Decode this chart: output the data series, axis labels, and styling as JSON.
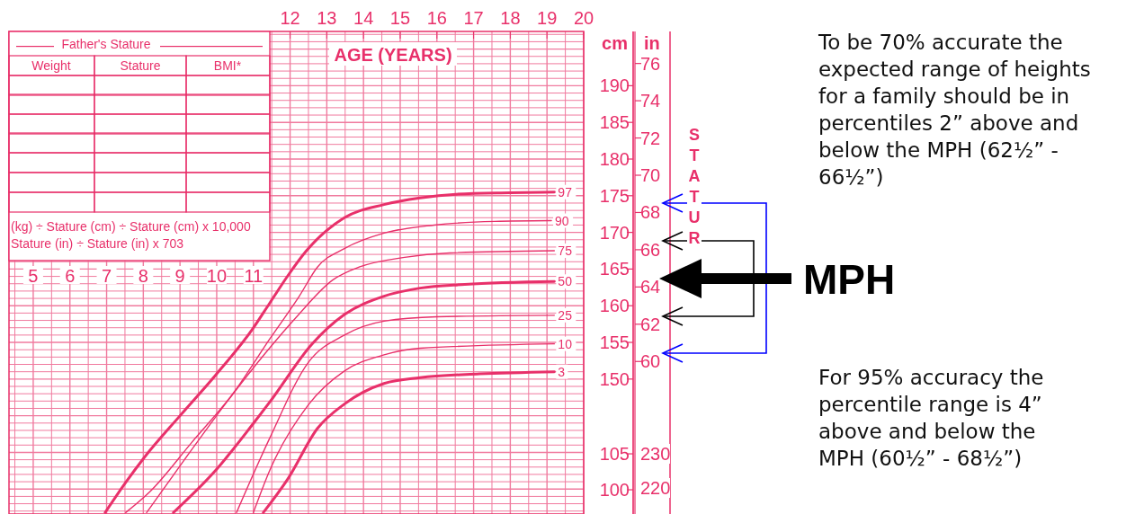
{
  "chart_data": {
    "type": "line",
    "xlabel": "AGE (YEARS)",
    "ylabel": "cm",
    "y2label": "in",
    "xlim": [
      4.34,
      20
    ],
    "xticks": [
      5,
      6,
      7,
      8,
      9,
      10,
      11
    ],
    "x2lim": [
      4.34,
      20
    ],
    "x2ticks": [
      12,
      13,
      14,
      15,
      16,
      17,
      18,
      19,
      20
    ],
    "ylim": [
      131.6,
      197.4
    ],
    "yticks": [
      150,
      155,
      160,
      165,
      170,
      175,
      180,
      185,
      190
    ],
    "y2lim": [
      51.81,
      77.72
    ],
    "y2ticks": [
      60,
      62,
      64,
      66,
      68,
      70,
      72,
      74,
      76
    ],
    "y3lim": [
      96.63,
      163.75
    ],
    "y3ticks": [
      100,
      105
    ],
    "grid": true,
    "marker": "none",
    "line_style": "solid",
    "series": [
      {
        "name": "3",
        "color": "#e8306a",
        "x": [
          11.27,
          11.94,
          12.75,
          13.48,
          14.56,
          15.54,
          17.16,
          19.2
        ],
        "values": [
          131.8,
          136.4,
          143.3,
          146.6,
          149.4,
          150.2,
          150.7,
          151.0
        ]
      },
      {
        "name": "10",
        "color": "#e8306a",
        "x": [
          11.0,
          11.45,
          12.5,
          13.48,
          14.56,
          15.54,
          19.2
        ],
        "values": [
          131.8,
          137.6,
          146.5,
          151.1,
          153.3,
          154.2,
          154.8
        ]
      },
      {
        "name": "25",
        "color": "#e8306a",
        "x": [
          10.54,
          11.45,
          12.5,
          13.48,
          14.56,
          16.0,
          19.2
        ],
        "values": [
          131.8,
          142.0,
          152.3,
          156.0,
          157.9,
          158.5,
          158.7
        ]
      },
      {
        "name": "50",
        "color": "#e8306a",
        "x": [
          8.82,
          9.98,
          10.96,
          11.45,
          12.6,
          13.48,
          14.56,
          15.54,
          16.76,
          19.2
        ],
        "values": [
          131.8,
          137.6,
          143.7,
          146.9,
          154.8,
          158.8,
          161.3,
          162.4,
          162.9,
          163.3
        ]
      },
      {
        "name": "75",
        "color": "#e8306a",
        "x": [
          8.09,
          9.12,
          10.22,
          11.32,
          12.18,
          13.16,
          13.9,
          15.12,
          16.35,
          19.2
        ],
        "values": [
          131.8,
          139.0,
          146.5,
          153.5,
          158.5,
          163.5,
          165.3,
          166.6,
          167.2,
          167.5
        ]
      },
      {
        "name": "90",
        "color": "#e8306a",
        "x": [
          7.52,
          8.19,
          9.31,
          10.47,
          11.45,
          12.25,
          12.75,
          13.48,
          14.56,
          15.93,
          17.57,
          19.12
        ],
        "values": [
          131.8,
          134.7,
          141.3,
          148.2,
          155.5,
          161.3,
          165.3,
          167.8,
          169.9,
          171.0,
          171.5,
          171.6
        ]
      },
      {
        "name": "97",
        "color": "#e8306a",
        "x": [
          6.96,
          7.52,
          8.01,
          9.0,
          9.98,
          10.96,
          11.45,
          11.94,
          12.43,
          13.48,
          14.56,
          15.54,
          16.52,
          17.99,
          19.2
        ],
        "values": [
          131.8,
          135.9,
          139.2,
          145.0,
          150.6,
          156.7,
          160.4,
          164.1,
          167.4,
          172.0,
          173.8,
          174.7,
          175.2,
          175.4,
          175.5
        ]
      }
    ],
    "annotations": [
      "Father's Stature",
      "Weight",
      "Stature",
      "BMI*",
      "(kg) ÷ Stature (cm) ÷ Stature (cm) x 10,000",
      "Stature (in) ÷ Stature (in) x 703",
      "STATUR",
      "To be 70% accurate the expected range of heights for a family should be in percentiles 2” above and below the MPH (62½” - 66½”)",
      "For 95% accuracy the percentile range is 4” above and below the MPH (60½” - 68½”)",
      "MPH",
      "230",
      "220"
    ]
  }
}
